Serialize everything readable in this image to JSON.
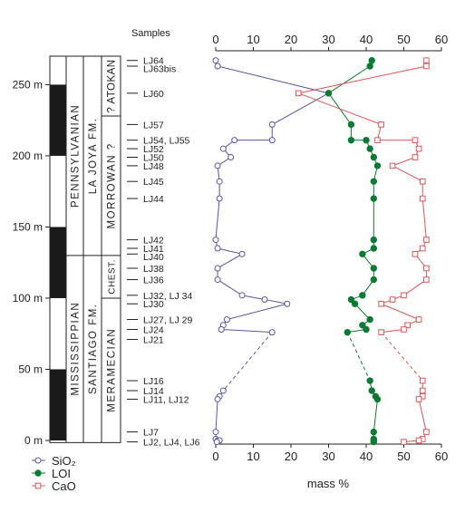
{
  "chart_data": {
    "type": "scatter",
    "xlabel": "mass %",
    "ylabel": "",
    "xlim": [
      0,
      60
    ],
    "ylim": [
      0,
      270
    ],
    "x_ticks": [
      0,
      10,
      20,
      30,
      40,
      50,
      60
    ],
    "y_ticks": [
      {
        "value": 0,
        "label": "0 m"
      },
      {
        "value": 50,
        "label": "50 m"
      },
      {
        "value": 100,
        "label": "100 m"
      },
      {
        "value": 150,
        "label": "150 m"
      },
      {
        "value": 200,
        "label": "200 m"
      },
      {
        "value": 250,
        "label": "250 m"
      }
    ],
    "samples_header": "Samples",
    "sample_labels": [
      {
        "label": "LJ64",
        "y": 267
      },
      {
        "label": "LJ63bis",
        "y": 263
      },
      {
        "label": "LJ60",
        "y": 244
      },
      {
        "label": "LJ57",
        "y": 222
      },
      {
        "label": "LJ54, LJ55",
        "y": 211
      },
      {
        "label": "LJ52",
        "y": 205
      },
      {
        "label": "LJ50",
        "y": 199
      },
      {
        "label": "LJ48",
        "y": 193
      },
      {
        "label": "LJ45",
        "y": 182
      },
      {
        "label": "LJ44",
        "y": 170
      },
      {
        "label": "LJ42",
        "y": 141
      },
      {
        "label": "LJ41",
        "y": 135
      },
      {
        "label": "LJ40",
        "y": 131
      },
      {
        "label": "LJ38",
        "y": 121
      },
      {
        "label": "LJ36",
        "y": 113
      },
      {
        "label": "LJ32, LJ 34",
        "y": 102
      },
      {
        "label": "LJ30",
        "y": 96
      },
      {
        "label": "LJ27, LJ 29",
        "y": 85
      },
      {
        "label": "LJ24",
        "y": 78
      },
      {
        "label": "LJ21",
        "y": 71
      },
      {
        "label": "LJ16",
        "y": 42
      },
      {
        "label": "LJ14",
        "y": 35
      },
      {
        "label": "LJ11, LJ12",
        "y": 29
      },
      {
        "label": "LJ7",
        "y": 6
      },
      {
        "label": "LJ2, LJ4, LJ6",
        "y": -1
      }
    ],
    "strat_columns": {
      "systems": [
        {
          "name": "PENNSYLVANIAN",
          "from": 130,
          "to": 270
        },
        {
          "name": "MISSISSIPPIAN",
          "from": -1,
          "to": 130
        }
      ],
      "formations": [
        {
          "name": "LA JOYA FM.",
          "from": 130,
          "to": 270
        },
        {
          "name": "SANTIAGO FM.",
          "from": -1,
          "to": 130
        }
      ],
      "stages": [
        {
          "name": "? ATOKAN",
          "from": 228,
          "to": 270
        },
        {
          "name": "MORROWAN ?",
          "from": 130,
          "to": 228
        },
        {
          "name": "CHEST.",
          "from": 100,
          "to": 130
        },
        {
          "name": "MERAMECIAN",
          "from": -1,
          "to": 100
        }
      ],
      "scale_black_bands": [
        [
          0,
          50
        ],
        [
          100,
          150
        ],
        [
          200,
          250
        ]
      ]
    },
    "series": [
      {
        "name": "SiO₂",
        "marker": "open-circle",
        "color": "#5555aa",
        "points": [
          [
            0,
            267
          ],
          [
            0.5,
            263
          ],
          [
            30,
            244
          ],
          [
            15,
            222
          ],
          [
            15,
            211
          ],
          [
            5,
            211
          ],
          [
            2,
            205
          ],
          [
            4,
            199
          ],
          [
            0.5,
            193
          ],
          [
            1,
            182
          ],
          [
            1,
            170
          ],
          [
            0,
            141
          ],
          [
            0.5,
            135
          ],
          [
            7,
            131
          ],
          [
            0.5,
            121
          ],
          [
            0.5,
            113
          ],
          [
            7,
            102
          ],
          [
            13,
            99
          ],
          [
            19,
            96
          ],
          [
            3,
            85
          ],
          [
            2,
            81
          ],
          [
            1.5,
            78
          ],
          [
            15,
            76
          ],
          [
            2,
            35
          ],
          [
            1,
            31
          ],
          [
            0.5,
            29
          ],
          [
            0,
            6
          ],
          [
            0,
            1
          ],
          [
            0.5,
            0
          ],
          [
            1,
            0
          ],
          [
            0.3,
            -1
          ]
        ],
        "dashed_gaps": [
          [
            76,
            35
          ]
        ]
      },
      {
        "name": "LOI",
        "marker": "filled-circle",
        "color": "#0b7a33",
        "points": [
          [
            41.5,
            267
          ],
          [
            41,
            263
          ],
          [
            30,
            244
          ],
          [
            36,
            222
          ],
          [
            36,
            211
          ],
          [
            40,
            211
          ],
          [
            41,
            205
          ],
          [
            42,
            199
          ],
          [
            43,
            193
          ],
          [
            42,
            182
          ],
          [
            42,
            170
          ],
          [
            42,
            141
          ],
          [
            42,
            135
          ],
          [
            39,
            131
          ],
          [
            42,
            121
          ],
          [
            42,
            113
          ],
          [
            39,
            102
          ],
          [
            36,
            99
          ],
          [
            37,
            96
          ],
          [
            41,
            85
          ],
          [
            39,
            81
          ],
          [
            40,
            78
          ],
          [
            35,
            76
          ],
          [
            41,
            42
          ],
          [
            41.5,
            35
          ],
          [
            42.5,
            31
          ],
          [
            43,
            29
          ],
          [
            42,
            6
          ],
          [
            42,
            1
          ],
          [
            42,
            0
          ],
          [
            42,
            -1
          ]
        ],
        "dashed_gaps": [
          [
            76,
            42
          ]
        ]
      },
      {
        "name": "CaO",
        "marker": "open-square",
        "color": "#e05555",
        "points": [
          [
            56,
            267
          ],
          [
            56,
            263
          ],
          [
            22,
            244
          ],
          [
            44,
            222
          ],
          [
            43,
            211
          ],
          [
            53,
            211
          ],
          [
            54,
            205
          ],
          [
            53,
            199
          ],
          [
            47,
            193
          ],
          [
            55,
            182
          ],
          [
            55,
            170
          ],
          [
            56,
            141
          ],
          [
            55,
            135
          ],
          [
            53,
            131
          ],
          [
            56,
            121
          ],
          [
            56,
            113
          ],
          [
            50,
            102
          ],
          [
            47,
            99
          ],
          [
            44,
            96
          ],
          [
            54,
            85
          ],
          [
            51,
            81
          ],
          [
            50,
            78
          ],
          [
            44,
            76
          ],
          [
            55,
            42
          ],
          [
            55,
            35
          ],
          [
            55,
            31
          ],
          [
            54,
            29
          ],
          [
            56,
            6
          ],
          [
            55,
            1
          ],
          [
            54,
            0
          ],
          [
            50,
            -1
          ]
        ],
        "dashed_gaps": [
          [
            76,
            42
          ]
        ]
      }
    ],
    "legend": {
      "placement": "bottom-left",
      "entries": [
        {
          "label": "SiO₂",
          "marker": "open-circle",
          "color": "#5555aa"
        },
        {
          "label": "LOI",
          "marker": "filled-circle",
          "color": "#0b7a33"
        },
        {
          "label": "CaO",
          "marker": "open-square",
          "color": "#e05555"
        }
      ]
    },
    "grid": false
  }
}
